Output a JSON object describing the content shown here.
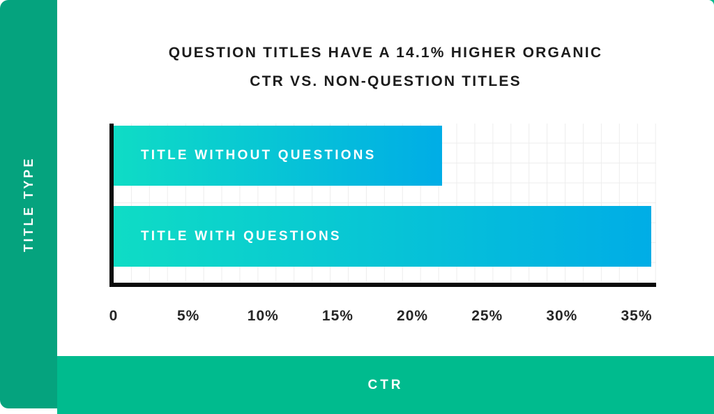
{
  "page": {
    "sidebar_label": "TITLE TYPE",
    "bottom_label": "CTR"
  },
  "chart_data": {
    "type": "bar",
    "orientation": "horizontal",
    "title_lines": [
      "QUESTION TITLES HAVE A 14.1% HIGHER ORGANIC",
      "CTR VS. NON-QUESTION TITLES"
    ],
    "categories": [
      "TITLE WITHOUT QUESTIONS",
      "TITLE WITH QUESTIONS"
    ],
    "values": [
      22,
      36
    ],
    "unit": "%",
    "xlabel": "CTR",
    "ylabel": "TITLE TYPE",
    "xlim": [
      0,
      36.4
    ],
    "x_tick_values": [
      0,
      5,
      10,
      15,
      20,
      25,
      30,
      35
    ],
    "x_tick_labels": [
      "0",
      "5%",
      "10%",
      "15%",
      "20%",
      "25%",
      "30%",
      "35%"
    ],
    "grid": true,
    "legend": false,
    "bar_gradient": [
      "#0FDCC5",
      "#00ADE6"
    ],
    "colors": {
      "sidebar_green": "#05A37E",
      "band_green": "#00BB8E",
      "axis_black": "#0B0B0B",
      "grid_gray": "#EDEDED",
      "title_text": "#1C1C1C"
    }
  }
}
